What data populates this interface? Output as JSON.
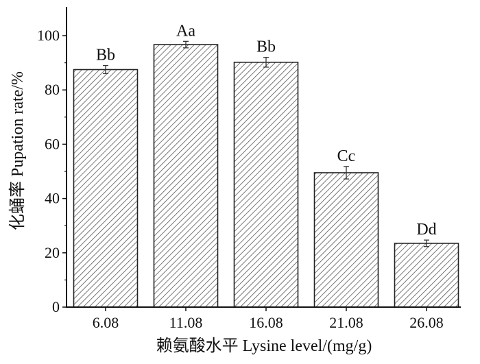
{
  "chart_data": {
    "type": "bar",
    "categories": [
      "6.08",
      "11.08",
      "16.08",
      "21.08",
      "26.08"
    ],
    "values": [
      87.5,
      96.7,
      90.2,
      49.5,
      23.5
    ],
    "errors": [
      1.5,
      1.2,
      1.8,
      2.3,
      1.2
    ],
    "annotations": [
      "Bb",
      "Aa",
      "Bb",
      "Cc",
      "Dd"
    ],
    "xlabel": "赖氨酸水平 Lysine level/(mg/g)",
    "ylabel": "化蛹率 Pupation rate/%",
    "ylim": [
      0,
      110
    ],
    "yticks": [
      0,
      20,
      40,
      60,
      80,
      100
    ],
    "grid": false,
    "bar_fill": "hatched",
    "colors": {
      "bar_edge": "#222222",
      "hatch": "#555555",
      "background": "#ffffff"
    }
  }
}
